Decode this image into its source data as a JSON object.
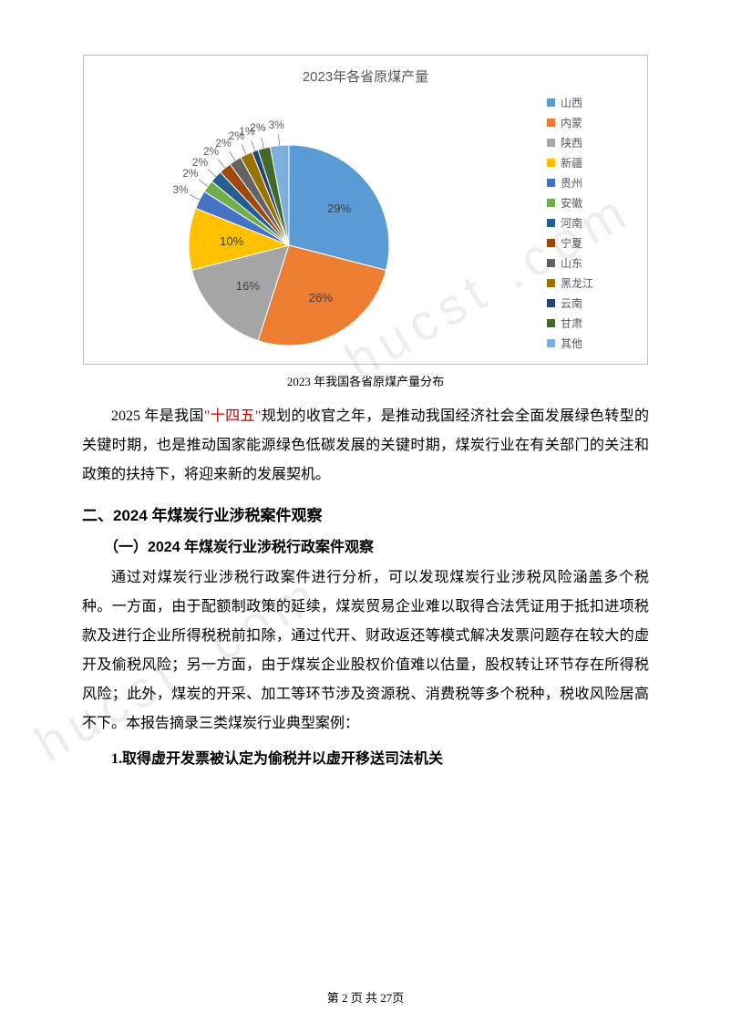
{
  "chart": {
    "type": "pie",
    "title": "2023年各省原煤产量",
    "title_fontsize": 15,
    "title_color": "#595959",
    "background_color": "#ffffff",
    "border_color": "#bfbfbf",
    "label_fontsize": 12,
    "label_color": "#595959",
    "legend_fontsize": 12,
    "slices": [
      {
        "label": "山西",
        "value": 29,
        "color": "#5b9bd5",
        "show_label": "29%"
      },
      {
        "label": "内蒙",
        "value": 26,
        "color": "#ed7d31",
        "show_label": "26%"
      },
      {
        "label": "陕西",
        "value": 16,
        "color": "#a5a5a5",
        "show_label": "16%"
      },
      {
        "label": "新疆",
        "value": 10,
        "color": "#ffc000",
        "show_label": "10%"
      },
      {
        "label": "贵州",
        "value": 3,
        "color": "#4472c4",
        "show_label": "3%"
      },
      {
        "label": "安徽",
        "value": 2,
        "color": "#70ad47",
        "show_label": "2%"
      },
      {
        "label": "河南",
        "value": 2,
        "color": "#255e91",
        "show_label": "2%"
      },
      {
        "label": "宁夏",
        "value": 2,
        "color": "#9e480e",
        "show_label": "2%"
      },
      {
        "label": "山东",
        "value": 2,
        "color": "#636363",
        "show_label": "2%"
      },
      {
        "label": "黑龙江",
        "value": 2,
        "color": "#997300",
        "show_label": "2%"
      },
      {
        "label": "云南",
        "value": 1,
        "color": "#264478",
        "show_label": "1%"
      },
      {
        "label": "甘肃",
        "value": 2,
        "color": "#43682b",
        "show_label": "2%"
      },
      {
        "label": "其他",
        "value": 3,
        "color": "#7cafdd",
        "show_label": "3%"
      }
    ]
  },
  "caption": "2023 年我国各省原煤产量分布",
  "para1_pre": "2025 年是我国",
  "para1_red": "\"十四五\"",
  "para1_post": "规划的收官之年，是推动我国经济社会全面发展绿色转型的关键时期，也是推动国家能源绿色低碳发展的关键时期，煤炭行业在有关部门的关注和政策的扶持下，将迎来新的发展契机。",
  "h2": "二、2024 年煤炭行业涉税案件观察",
  "h3": "（一）2024 年煤炭行业涉税行政案件观察",
  "para2": "通过对煤炭行业涉税行政案件进行分析，可以发现煤炭行业涉税风险涵盖多个税种。一方面，由于配额制政策的延续，煤炭贸易企业难以取得合法凭证用于抵扣进项税款及进行企业所得税税前扣除，通过代开、财政返还等模式解决发票问题存在较大的虚开及偷税风险；另一方面，由于煤炭企业股权价值难以估量，股权转让环节存在所得税风险；此外，煤炭的开采、加工等环节涉及资源税、消费税等多个税种，税收风险居高不下。本报告摘录三类煤炭行业典型案例：",
  "h4": "1.取得虚开发票被认定为偷税并以虚开移送司法机关",
  "footer_pre": "第 ",
  "footer_page": "2",
  "footer_mid": " 页 共 ",
  "footer_total": "27",
  "footer_post": "页",
  "watermark": "hucst .com"
}
